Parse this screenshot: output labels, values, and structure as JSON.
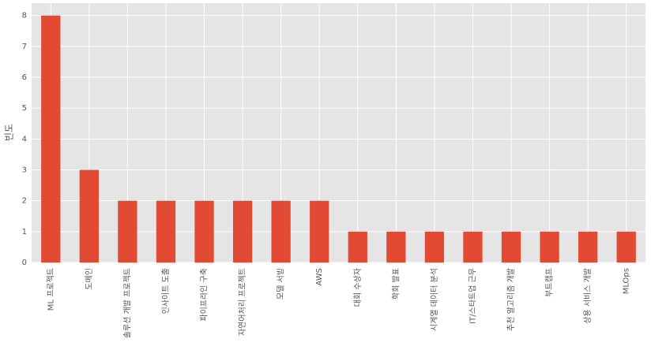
{
  "chart_data": {
    "type": "bar",
    "ylabel": "빈도",
    "categories": [
      "ML 프로젝트",
      "도메인",
      "솔루션 개발 프로젝트",
      "인사이트 도출",
      "파이프라인 구축",
      "자연어처리 프로젝트",
      "모델 서빙",
      "AWS",
      "대회 수상자",
      "학회 발표",
      "시계열 데이터 분석",
      "IT/스타트업 근무",
      "추천 알고리즘 개발",
      "부트캠프",
      "상용 서비스 개발",
      "MLOps"
    ],
    "values": [
      8,
      3,
      2,
      2,
      2,
      2,
      2,
      2,
      1,
      1,
      1,
      1,
      1,
      1,
      1,
      1
    ],
    "color": "#e24a33",
    "ylim": [
      0,
      8.4
    ],
    "yticks": [
      0,
      1,
      2,
      3,
      4,
      5,
      6,
      7,
      8
    ],
    "grid": true
  }
}
